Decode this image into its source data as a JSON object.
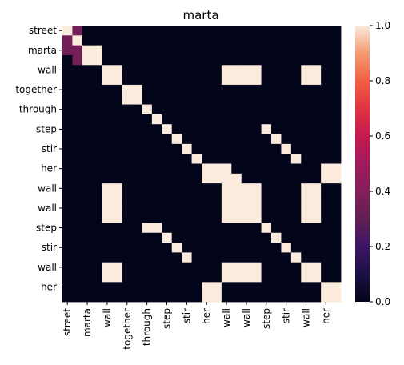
{
  "chart_data": {
    "type": "heatmap",
    "title": "marta",
    "xlabel": "",
    "ylabel": "",
    "tokens": [
      "street",
      "street",
      "marta",
      "marta",
      "wall",
      "wall",
      "together",
      "together",
      "through",
      "through",
      "step",
      "step",
      "stir",
      "stir",
      "her",
      "her",
      "wall",
      "wall",
      "wall",
      "wall",
      "step",
      "step",
      "stir",
      "stir",
      "wall",
      "wall",
      "her",
      "her"
    ],
    "x_tick_labels": [
      "street",
      "marta",
      "wall",
      "together",
      "through",
      "step",
      "stir",
      "her",
      "wall",
      "wall",
      "step",
      "stir",
      "wall",
      "her"
    ],
    "y_tick_labels": [
      "street",
      "marta",
      "wall",
      "together",
      "through",
      "step",
      "stir",
      "her",
      "wall",
      "wall",
      "step",
      "stir",
      "wall",
      "her"
    ],
    "cells": [
      "ooooooooooooooooooooooooooooo",
      "abobboooooooooooooooooooooooo",
      "booaaoooooooooooooooooooooooo",
      "oobaaoooooooooooooooooooooooo",
      "ooooooooooooooooooooooooooooo",
      "oooooaaoooooooooaoaaoooooaaoo",
      "ooooooooooooooooooooooooooooo",
      "oooooooaaoooooooooooooooooooo",
      "ooooooooooooooooooooooooooooo",
      "ooooooooooaoooooooooooooooooo",
      "oooooooooooooooooooooooooo",
      "ooooooooooooaooooooooaooooooo",
      "oooooooooooooaooooooooaoooooo",
      "ooooooooooooooaooooooooaooooo",
      "oooooooooooooooaooooooooaoooo",
      "oooooooooooooooooaooooooooooo",
      "oooooaaoooooooooaoaaooooaaooo",
      "oooooooooooooooooooaaoooooooaa",
      "oooooaaoooooooooaooaaaaooooaaoo",
      "oooooaaoooooooooaooaaaaooooaaoo",
      "oooooaaoooooooooaooaaaaooooaaoo",
      "oooooaaoooooooooaooaaaaooooaaoo",
      "ooooooooooooooooooooooaoooooo",
      "ooooooooooaoooooooooooooooooo",
      "oooooooooooaooooooooooaoooooo",
      "ooooooooooooaooooooooooaooooo",
      "oooooooooooooaooooooooooaoooo",
      "oooooaaoooooooooaooaaaaooooaaoo"
    ],
    "colorbar": {
      "min": 0.0,
      "max": 1.0,
      "ticks": [
        "0.0",
        "0.2",
        "0.4",
        "0.6",
        "0.8",
        "1.0"
      ]
    },
    "colormap": "rocket",
    "note_values": {
      "a": 1.0,
      "b": 0.35,
      "o": 0.0
    }
  }
}
